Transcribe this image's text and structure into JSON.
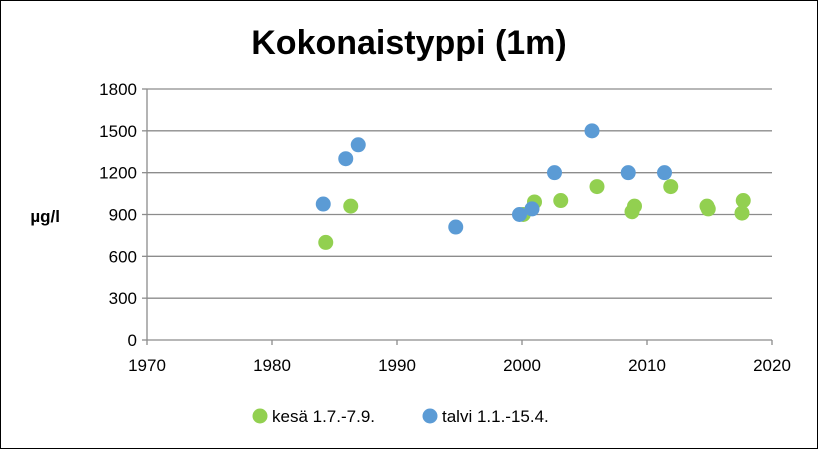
{
  "chart_data": {
    "type": "scatter",
    "title": "Kokonaistyppi (1m)",
    "ylabel": "µg/l",
    "xlabel": "",
    "xlim": [
      1970,
      2020
    ],
    "ylim": [
      0,
      1800
    ],
    "x_ticks": [
      1970,
      1980,
      1990,
      2000,
      2010,
      2020
    ],
    "y_ticks": [
      0,
      300,
      600,
      900,
      1200,
      1500,
      1800
    ],
    "grid": "horizontal",
    "legend_position": "bottom",
    "series": [
      {
        "name": "kesä 1.7.-7.9.",
        "color": "#92d050",
        "points": [
          [
            1984.3,
            700
          ],
          [
            1986.3,
            960
          ],
          [
            2000.1,
            900
          ],
          [
            2001.0,
            990
          ],
          [
            2003.1,
            1000
          ],
          [
            2006.0,
            1100
          ],
          [
            2008.8,
            920
          ],
          [
            2009.0,
            960
          ],
          [
            2011.9,
            1100
          ],
          [
            2014.8,
            960
          ],
          [
            2014.9,
            940
          ],
          [
            2017.6,
            910
          ],
          [
            2017.7,
            1000
          ]
        ]
      },
      {
        "name": "talvi 1.1.-15.4.",
        "color": "#5b9bd5",
        "points": [
          [
            1984.1,
            975
          ],
          [
            1985.9,
            1300
          ],
          [
            1986.9,
            1400
          ],
          [
            1994.7,
            810
          ],
          [
            1999.8,
            900
          ],
          [
            2000.8,
            940
          ],
          [
            2002.6,
            1200
          ],
          [
            2005.6,
            1500
          ],
          [
            2008.5,
            1200
          ],
          [
            2011.4,
            1200
          ]
        ]
      }
    ]
  }
}
